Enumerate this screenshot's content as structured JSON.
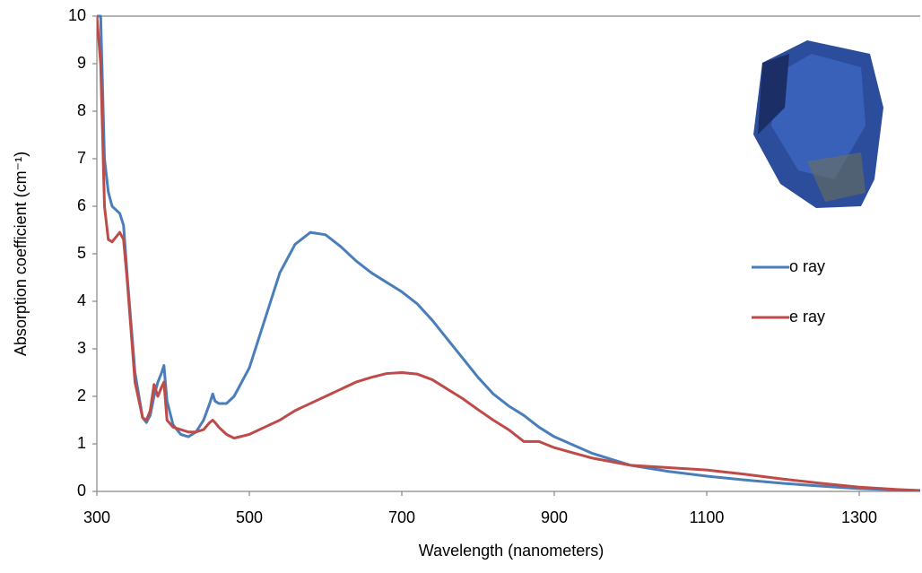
{
  "chart_data": {
    "type": "line",
    "x_label": "Wavelength (nanometers)",
    "y_label": "Absorption coefficient (cm⁻¹)",
    "x": [
      300,
      305,
      310,
      315,
      320,
      330,
      335,
      340,
      350,
      360,
      365,
      370,
      375,
      380,
      385,
      388,
      392,
      400,
      410,
      420,
      430,
      440,
      448,
      452,
      455,
      460,
      470,
      480,
      500,
      520,
      540,
      560,
      580,
      600,
      620,
      640,
      660,
      680,
      700,
      720,
      740,
      760,
      780,
      800,
      820,
      840,
      860,
      880,
      900,
      950,
      1000,
      1050,
      1100,
      1150,
      1200,
      1250,
      1300,
      1350,
      1380
    ],
    "series": [
      {
        "name": "o ray",
        "color": "#4a7ebb",
        "values": [
          10,
          10,
          7,
          6.3,
          6.0,
          5.85,
          5.6,
          4.5,
          2.5,
          1.55,
          1.45,
          1.6,
          2.0,
          2.3,
          2.5,
          2.65,
          1.9,
          1.4,
          1.2,
          1.15,
          1.25,
          1.5,
          1.85,
          2.05,
          1.9,
          1.85,
          1.85,
          2.0,
          2.6,
          3.6,
          4.6,
          5.2,
          5.45,
          5.4,
          5.15,
          4.85,
          4.6,
          4.4,
          4.2,
          3.95,
          3.6,
          3.2,
          2.8,
          2.4,
          2.05,
          1.8,
          1.6,
          1.35,
          1.15,
          0.8,
          0.55,
          0.42,
          0.32,
          0.24,
          0.17,
          0.11,
          0.06,
          0.03,
          0.01
        ]
      },
      {
        "name": "e ray",
        "color": "#be4b48",
        "values": [
          10,
          9,
          6,
          5.3,
          5.25,
          5.45,
          5.3,
          4.4,
          2.3,
          1.55,
          1.5,
          1.7,
          2.25,
          2.0,
          2.2,
          2.3,
          1.5,
          1.35,
          1.3,
          1.25,
          1.25,
          1.3,
          1.45,
          1.5,
          1.45,
          1.35,
          1.2,
          1.12,
          1.2,
          1.35,
          1.5,
          1.7,
          1.85,
          2.0,
          2.15,
          2.3,
          2.4,
          2.48,
          2.5,
          2.47,
          2.35,
          2.15,
          1.95,
          1.72,
          1.5,
          1.3,
          1.05,
          1.05,
          0.92,
          0.7,
          0.55,
          0.5,
          0.45,
          0.36,
          0.26,
          0.17,
          0.09,
          0.04,
          0.02
        ]
      }
    ],
    "xlim": [
      300,
      1380
    ],
    "xticks": [
      300,
      500,
      700,
      900,
      1100,
      1300
    ],
    "ylim": [
      0,
      10
    ],
    "yticks": [
      0,
      1,
      2,
      3,
      4,
      5,
      6,
      7,
      8,
      9,
      10
    ],
    "grid": false,
    "legend": "right"
  }
}
